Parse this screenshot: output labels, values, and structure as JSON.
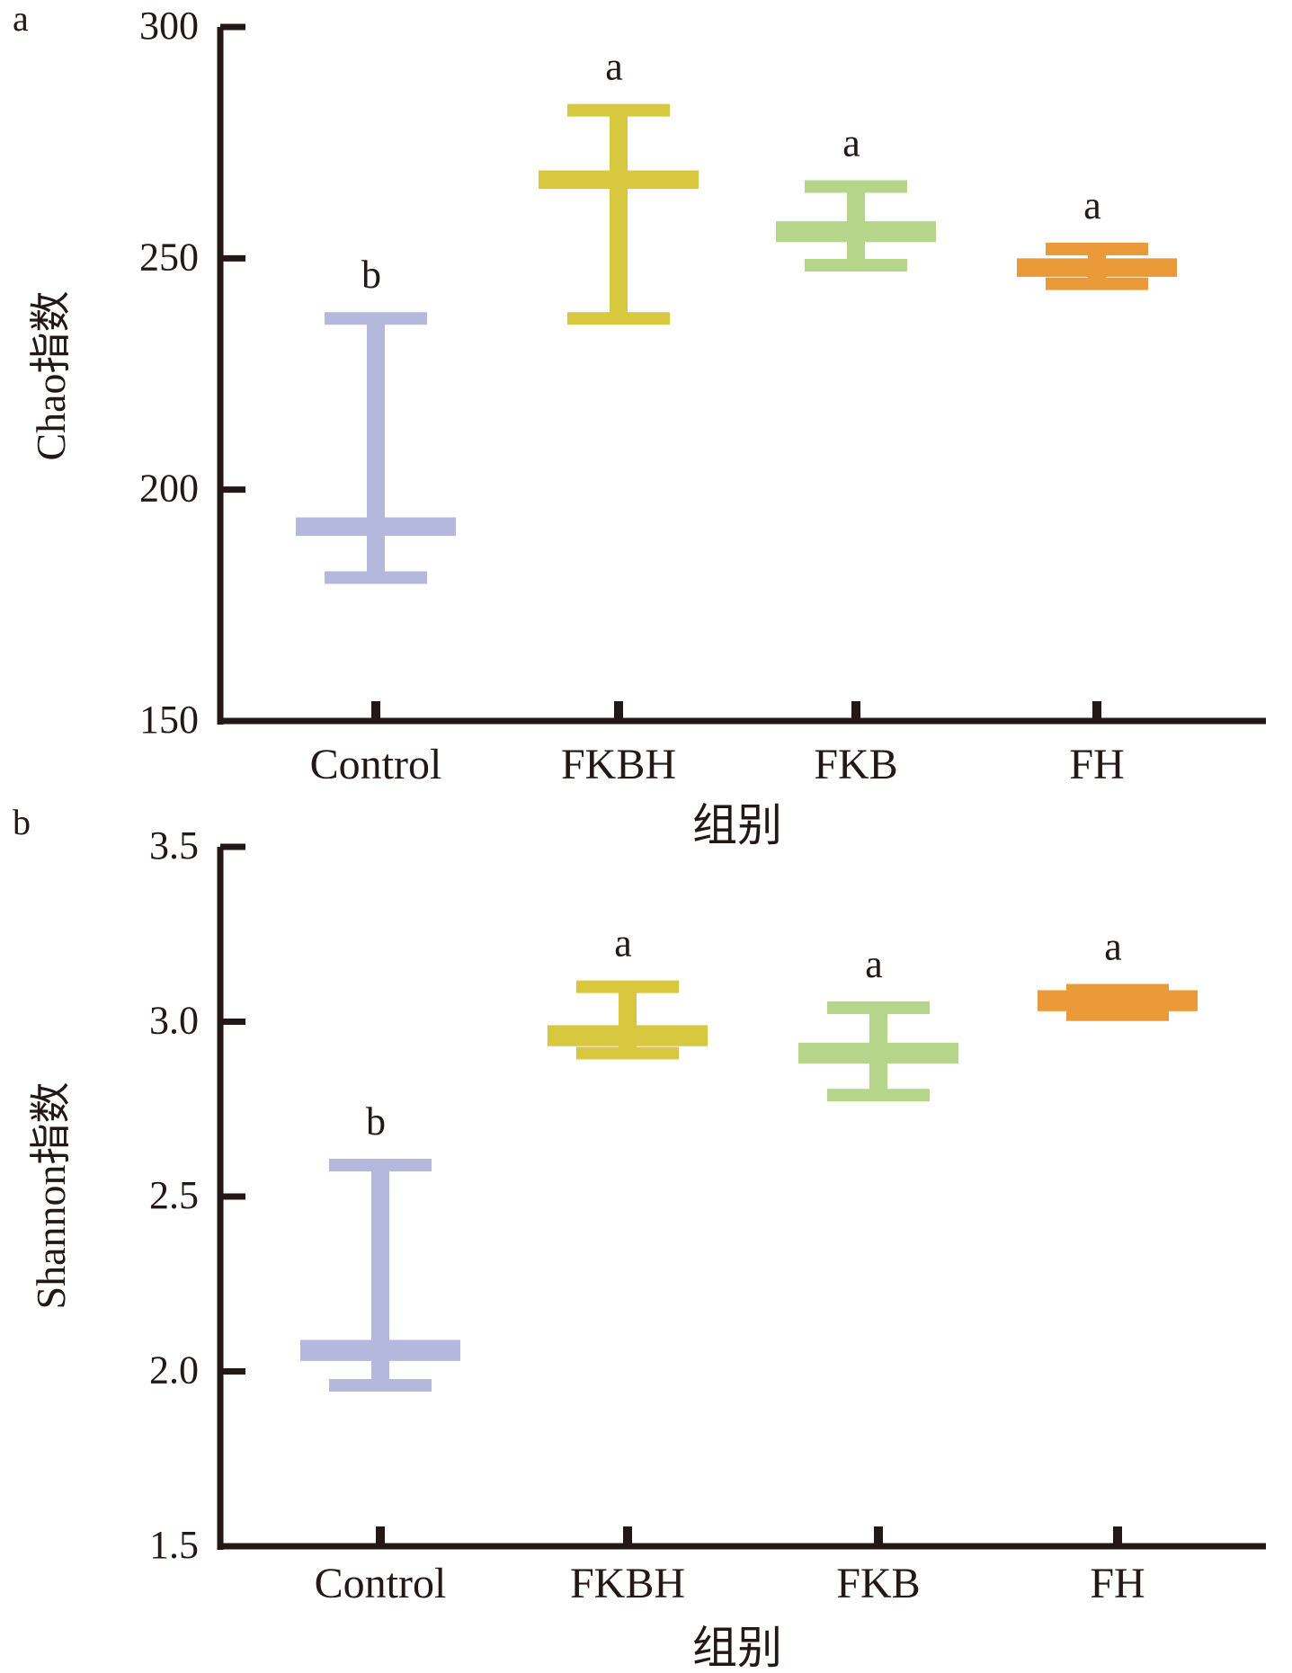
{
  "chart_data": [
    {
      "type": "box",
      "panel_label": "a",
      "categories": [
        "Control",
        "FKBH",
        "FKB",
        "FH"
      ],
      "xlabel": "组别",
      "ylabel": "Chao指数",
      "ylim": [
        150,
        300
      ],
      "yticks": [
        "150",
        "200",
        "250",
        "300"
      ],
      "colors": [
        "#b3b8dc",
        "#d8c840",
        "#b5d58a",
        "#eb9a3a"
      ],
      "boxes": [
        {
          "category": "Control",
          "min": 181,
          "q1": 190,
          "q3": 194,
          "max": 237,
          "significance": "b"
        },
        {
          "category": "FKBH",
          "min": 237,
          "q1": 265,
          "q3": 269,
          "max": 282,
          "significance": "a"
        },
        {
          "category": "FKB",
          "min": 248.5,
          "q1": 253.5,
          "q3": 258,
          "max": 265.5,
          "significance": "a"
        },
        {
          "category": "FH",
          "min": 244.5,
          "q1": 246,
          "q3": 250,
          "max": 252,
          "significance": "a"
        }
      ]
    },
    {
      "type": "box",
      "panel_label": "b",
      "categories": [
        "Control",
        "FKBH",
        "FKB",
        "FH"
      ],
      "xlabel": "组别",
      "ylabel": "Shannon指数",
      "ylim": [
        1.5,
        3.5
      ],
      "yticks": [
        "1.5",
        "2.0",
        "2.5",
        "3.0",
        "3.5"
      ],
      "colors": [
        "#b3b8dc",
        "#d8c840",
        "#b5d58a",
        "#eb9a3a"
      ],
      "boxes": [
        {
          "category": "Control",
          "min": 1.96,
          "q1": 2.03,
          "q3": 2.09,
          "max": 2.59,
          "significance": "b"
        },
        {
          "category": "FKBH",
          "min": 2.91,
          "q1": 2.93,
          "q3": 2.99,
          "max": 3.1,
          "significance": "a"
        },
        {
          "category": "FKB",
          "min": 2.79,
          "q1": 2.88,
          "q3": 2.94,
          "max": 3.04,
          "significance": "a"
        },
        {
          "category": "FH",
          "min": 3.02,
          "q1": 3.03,
          "q3": 3.09,
          "max": 3.09,
          "significance": "a"
        }
      ]
    }
  ]
}
